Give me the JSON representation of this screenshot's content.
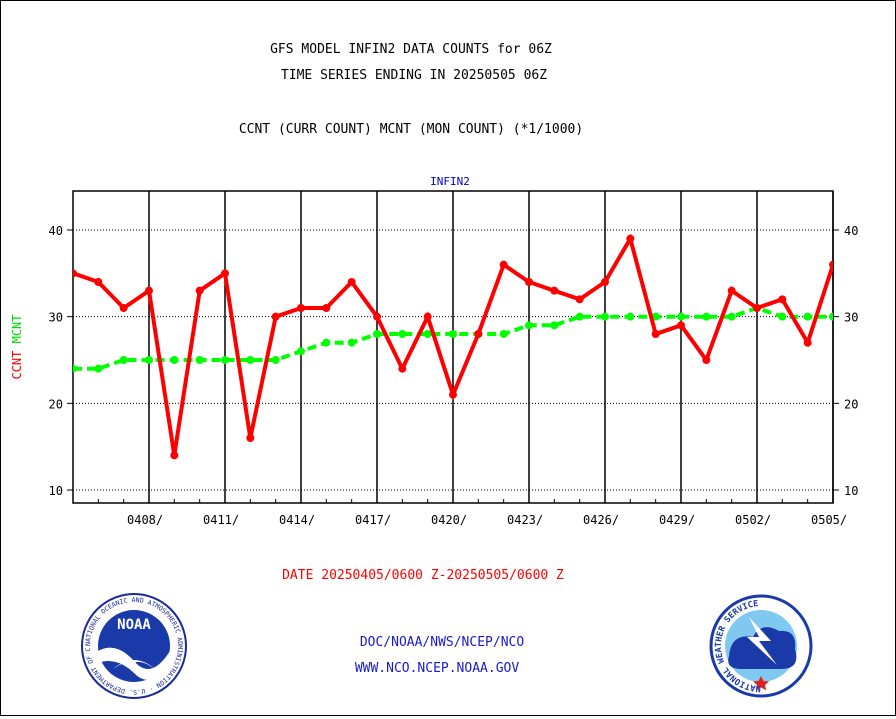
{
  "header": {
    "title_line1": "GFS MODEL INFIN2 DATA COUNTS for 06Z",
    "title_line2": "TIME SERIES ENDING IN 20250505 06Z",
    "subtitle": "CCNT (CURR COUNT) MCNT (MON COUNT) (*1/1000)"
  },
  "chart_data": {
    "type": "line",
    "title": "INFIN2",
    "ylabel_left": {
      "ccnt": "CCNT",
      "mcnt": "MCNT"
    },
    "xlabel": "DATE 20250405/0600 Z-20250505/0600 Z",
    "ylim": [
      8.5,
      44.5
    ],
    "xlim": [
      "20250405",
      "20250505"
    ],
    "y_ticks": [
      10,
      20,
      30,
      40
    ],
    "x_ticks": [
      {
        "date": "20250408",
        "label": "0408/"
      },
      {
        "date": "20250411",
        "label": "0411/"
      },
      {
        "date": "20250414",
        "label": "0414/"
      },
      {
        "date": "20250417",
        "label": "0417/"
      },
      {
        "date": "20250420",
        "label": "0420/"
      },
      {
        "date": "20250423",
        "label": "0423/"
      },
      {
        "date": "20250426",
        "label": "0426/"
      },
      {
        "date": "20250429",
        "label": "0429/"
      },
      {
        "date": "20250502",
        "label": "0502/"
      },
      {
        "date": "20250505",
        "label": "0505/"
      }
    ],
    "grid": true,
    "x": [
      "20250405",
      "20250406",
      "20250407",
      "20250408",
      "20250409",
      "20250410",
      "20250411",
      "20250412",
      "20250413",
      "20250414",
      "20250415",
      "20250416",
      "20250417",
      "20250418",
      "20250419",
      "20250420",
      "20250421",
      "20250422",
      "20250423",
      "20250424",
      "20250425",
      "20250426",
      "20250427",
      "20250428",
      "20250429",
      "20250430",
      "20250501",
      "20250502",
      "20250503",
      "20250504",
      "20250505"
    ],
    "series": [
      {
        "name": "CCNT",
        "color": "#ff0000",
        "style": "solid",
        "values": [
          35,
          34,
          31,
          33,
          14,
          33,
          35,
          16,
          30,
          31,
          31,
          34,
          30,
          24,
          30,
          21,
          28,
          36,
          34,
          33,
          32,
          34,
          39,
          28,
          29,
          25,
          33,
          31,
          32,
          27,
          36
        ]
      },
      {
        "name": "MCNT",
        "color": "#00ff00",
        "style": "dashed",
        "values": [
          24,
          24,
          25,
          25,
          25,
          25,
          25,
          25,
          25,
          26,
          27,
          27,
          28,
          28,
          28,
          28,
          28,
          28,
          29,
          29,
          30,
          30,
          30,
          30,
          30,
          30,
          30,
          31,
          30,
          30,
          30
        ]
      }
    ]
  },
  "footer": {
    "line1": "DOC/NOAA/NWS/NCEP/NCO",
    "line2": "WWW.NCO.NCEP.NOAA.GOV",
    "noaa_logo_text": "NOAA",
    "noaa_ring_text": "NATIONAL OCEANIC AND ATMOSPHERIC ADMINISTRATION · U.S. DEPARTMENT OF COMMERCE",
    "nws_ring_text": "NATIONAL WEATHER SERVICE"
  }
}
